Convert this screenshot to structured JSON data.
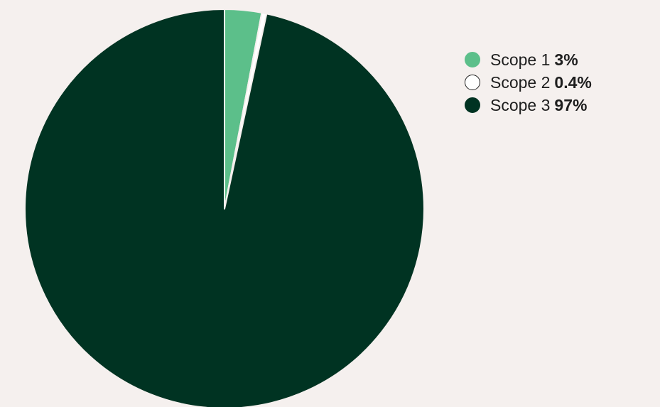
{
  "chart_data": {
    "type": "pie",
    "title": "",
    "background": "#f5f0ee",
    "slice_border_color": "#f5f0ee",
    "start_angle_deg": 0,
    "direction": "clockwise",
    "legend_position": "right",
    "slices": [
      {
        "name": "Scope 1",
        "label": "3%",
        "value": 3,
        "color": "#5cbf8a",
        "outline": "#5cbf8a"
      },
      {
        "name": "Scope 2",
        "label": "0.4%",
        "value": 0.4,
        "color": "#ffffff",
        "outline": "#1e1e1e"
      },
      {
        "name": "Scope 3",
        "label": "97%",
        "value": 97,
        "color": "#003322",
        "outline": "#003322"
      }
    ]
  }
}
